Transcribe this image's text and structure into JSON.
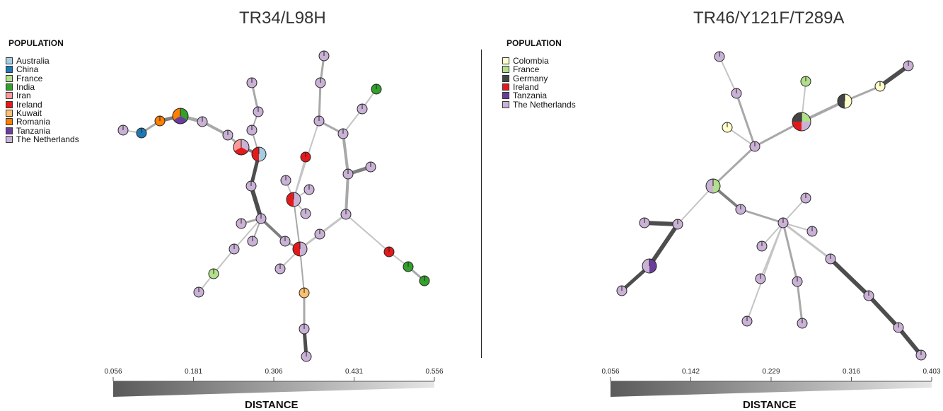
{
  "colors": {
    "Australia": "#a6cee3",
    "China": "#1f78b4",
    "France": "#b2df8a",
    "India": "#33a02c",
    "Iran": "#fb9a99",
    "Ireland": "#e31a1c",
    "Kuwait": "#fdbf6f",
    "Romania": "#ff7f00",
    "Tanzania": "#6a3d9a",
    "The Netherlands": "#cab2d6",
    "Colombia": "#ffffcc",
    "Germany": "#444444"
  },
  "left": {
    "title": "TR34/L98H",
    "legend_title": "POPULATION",
    "legend": [
      "Australia",
      "China",
      "France",
      "India",
      "Iran",
      "Ireland",
      "Kuwait",
      "Romania",
      "Tanzania",
      "The Netherlands"
    ],
    "scale_ticks": [
      "0.056",
      "0.181",
      "0.306",
      "0.431",
      "0.556"
    ],
    "scale_label": "DISTANCE"
  },
  "right": {
    "title": "TR46/Y121F/T289A",
    "legend_title": "POPULATION",
    "legend": [
      "Colombia",
      "France",
      "Germany",
      "Ireland",
      "Tanzania",
      "The Netherlands"
    ],
    "scale_ticks": [
      "0.056",
      "0.142",
      "0.229",
      "0.316",
      "0.403"
    ],
    "scale_label": "DISTANCE"
  }
}
